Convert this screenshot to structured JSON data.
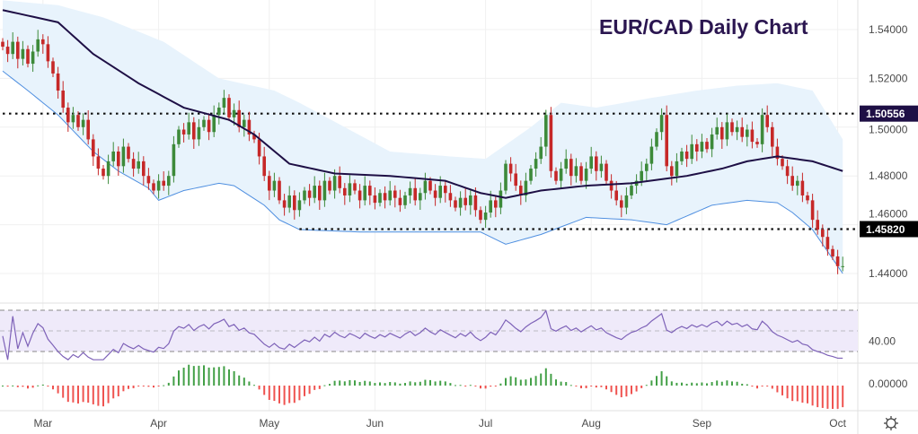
{
  "chart_data": {
    "type": "candlestick",
    "title": "EUR/CAD Daily Chart",
    "price_axis": {
      "ylim": [
        1.43,
        1.552
      ],
      "ticks": [
        "1.54000",
        "1.52000",
        "1.50000",
        "1.48000",
        "1.46000",
        "1.44000"
      ],
      "tick_values": [
        1.54,
        1.52,
        1.5,
        1.48,
        1.46,
        1.44
      ]
    },
    "time_axis": {
      "labels": [
        "Mar",
        "Apr",
        "May",
        "Jun",
        "Jul",
        "Aug",
        "Sep",
        "Oct"
      ],
      "label_indices": [
        8,
        31,
        53,
        74,
        96,
        117,
        139,
        166
      ]
    },
    "closes": [
      1.533,
      1.53,
      1.535,
      1.528,
      1.532,
      1.526,
      1.531,
      1.536,
      1.534,
      1.527,
      1.522,
      1.515,
      1.508,
      1.502,
      1.505,
      1.5,
      1.503,
      1.495,
      1.488,
      1.483,
      1.48,
      1.486,
      1.49,
      1.484,
      1.492,
      1.487,
      1.483,
      1.486,
      1.48,
      1.477,
      1.474,
      1.478,
      1.476,
      1.48,
      1.493,
      1.499,
      1.497,
      1.502,
      1.495,
      1.5,
      1.503,
      1.498,
      1.505,
      1.508,
      1.512,
      1.504,
      1.507,
      1.5,
      1.503,
      1.497,
      1.495,
      1.488,
      1.48,
      1.474,
      1.478,
      1.47,
      1.467,
      1.472,
      1.466,
      1.47,
      1.474,
      1.471,
      1.476,
      1.47,
      1.478,
      1.474,
      1.48,
      1.475,
      1.472,
      1.477,
      1.474,
      1.47,
      1.476,
      1.472,
      1.469,
      1.473,
      1.47,
      1.474,
      1.471,
      1.468,
      1.472,
      1.475,
      1.47,
      1.473,
      1.478,
      1.474,
      1.471,
      1.476,
      1.473,
      1.47,
      1.467,
      1.471,
      1.468,
      1.472,
      1.466,
      1.462,
      1.465,
      1.47,
      1.467,
      1.474,
      1.485,
      1.481,
      1.476,
      1.472,
      1.478,
      1.483,
      1.487,
      1.492,
      1.505,
      1.482,
      1.478,
      1.483,
      1.487,
      1.48,
      1.484,
      1.478,
      1.483,
      1.488,
      1.482,
      1.485,
      1.478,
      1.474,
      1.47,
      1.467,
      1.472,
      1.476,
      1.478,
      1.482,
      1.485,
      1.492,
      1.498,
      1.505,
      1.484,
      1.48,
      1.486,
      1.49,
      1.487,
      1.493,
      1.49,
      1.494,
      1.491,
      1.497,
      1.5,
      1.495,
      1.502,
      1.498,
      1.5,
      1.496,
      1.499,
      1.494,
      1.493,
      1.505,
      1.5,
      1.492,
      1.487,
      1.484,
      1.48,
      1.476,
      1.478,
      1.472,
      1.47,
      1.462,
      1.458,
      1.455,
      1.45,
      1.447,
      1.443,
      1.443
    ],
    "moving_average": [
      [
        0,
        1.548
      ],
      [
        11,
        1.543
      ],
      [
        18,
        1.53
      ],
      [
        27,
        1.518
      ],
      [
        36,
        1.508
      ],
      [
        45,
        1.503
      ],
      [
        50,
        1.497
      ],
      [
        57,
        1.485
      ],
      [
        66,
        1.481
      ],
      [
        77,
        1.48
      ],
      [
        88,
        1.478
      ],
      [
        95,
        1.473
      ],
      [
        100,
        1.471
      ],
      [
        107,
        1.474
      ],
      [
        116,
        1.476
      ],
      [
        125,
        1.477
      ],
      [
        136,
        1.48
      ],
      [
        143,
        1.483
      ],
      [
        148,
        1.486
      ],
      [
        154,
        1.488
      ],
      [
        161,
        1.486
      ],
      [
        167,
        1.482
      ]
    ],
    "band_upper": [
      [
        0,
        1.552
      ],
      [
        11,
        1.55
      ],
      [
        20,
        1.545
      ],
      [
        32,
        1.535
      ],
      [
        43,
        1.52
      ],
      [
        54,
        1.515
      ],
      [
        59,
        1.51
      ],
      [
        68,
        1.5
      ],
      [
        77,
        1.49
      ],
      [
        89,
        1.488
      ],
      [
        96,
        1.487
      ],
      [
        105,
        1.5
      ],
      [
        111,
        1.51
      ],
      [
        118,
        1.508
      ],
      [
        129,
        1.512
      ],
      [
        138,
        1.515
      ],
      [
        146,
        1.517
      ],
      [
        154,
        1.518
      ],
      [
        161,
        1.515
      ],
      [
        167,
        1.495
      ]
    ],
    "band_lower": [
      [
        0,
        1.523
      ],
      [
        5,
        1.515
      ],
      [
        11,
        1.505
      ],
      [
        18,
        1.49
      ],
      [
        23,
        1.482
      ],
      [
        29,
        1.475
      ],
      [
        31,
        1.47
      ],
      [
        36,
        1.474
      ],
      [
        43,
        1.477
      ],
      [
        46,
        1.476
      ],
      [
        52,
        1.468
      ],
      [
        55,
        1.462
      ],
      [
        59,
        1.458
      ],
      [
        71,
        1.457
      ],
      [
        82,
        1.457
      ],
      [
        95,
        1.457
      ],
      [
        100,
        1.452
      ],
      [
        107,
        1.456
      ],
      [
        116,
        1.463
      ],
      [
        125,
        1.462
      ],
      [
        132,
        1.46
      ],
      [
        141,
        1.468
      ],
      [
        148,
        1.47
      ],
      [
        154,
        1.469
      ],
      [
        157,
        1.465
      ],
      [
        161,
        1.458
      ],
      [
        167,
        1.44
      ]
    ],
    "levels": [
      {
        "label": "1.50556",
        "value": 1.50556,
        "start_index": 0,
        "color": "#1e0f45"
      },
      {
        "label": "1.45820",
        "value": 1.4582,
        "start_index": 59,
        "color": "#000000"
      }
    ],
    "rsi": {
      "label": "40.00",
      "upper": 70,
      "middle": 50,
      "lower": 30,
      "label_value": 40
    },
    "macd_histogram": {
      "label": "0.00000"
    },
    "colors": {
      "up": "#3d8a3a",
      "down": "#c62828",
      "ma": "#1e0f45",
      "band_line": "#4f8fe0",
      "band_fill": "#e8f3fc",
      "rsi_line": "#7e62b8",
      "rsi_fill": "#efeafa",
      "hist_up": "#43a047",
      "hist_down": "#ef5350"
    }
  },
  "settings_icon": "gear-icon"
}
